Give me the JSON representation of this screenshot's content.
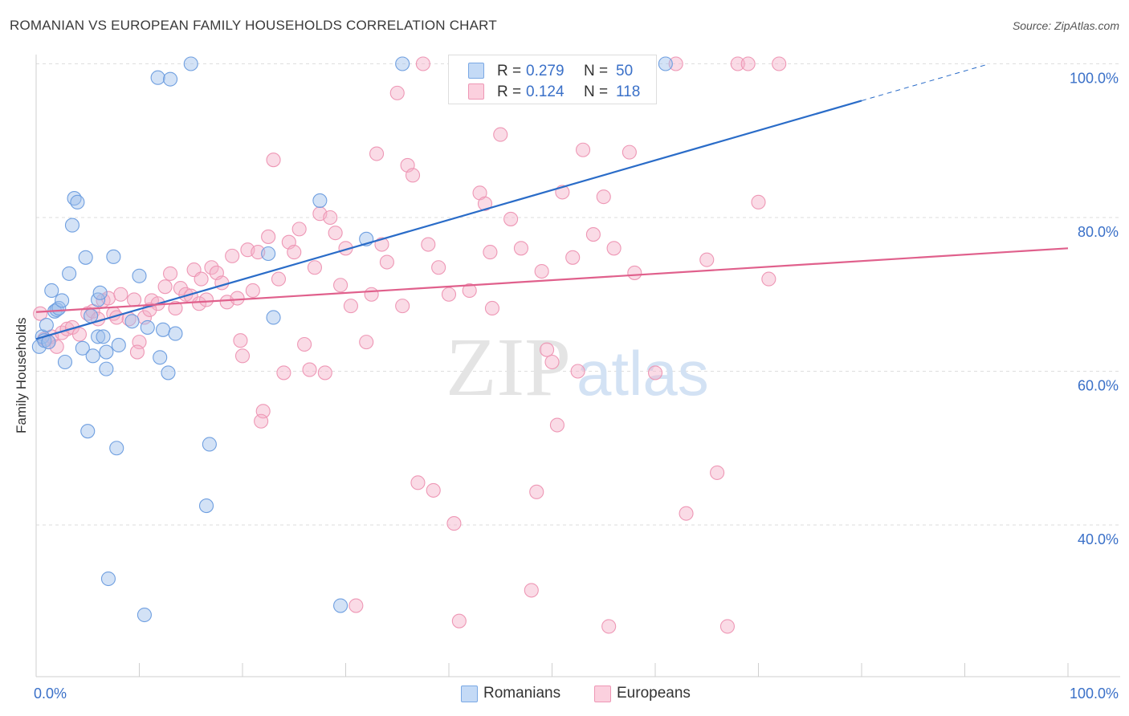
{
  "title": "ROMANIAN VS EUROPEAN FAMILY HOUSEHOLDS CORRELATION CHART",
  "source": "Source: ZipAtlas.com",
  "watermark": {
    "zip": "ZIP",
    "atlas": "atlas"
  },
  "legend": {
    "romanians": {
      "r_label": "R =",
      "r_value": "0.279",
      "n_label": "N =",
      "n_value": "50",
      "color": "#9dbfeb",
      "line": "#2a6cc8"
    },
    "europeans": {
      "r_label": "R =",
      "r_value": "0.124",
      "n_label": "N =",
      "n_value": "118",
      "color": "#f5b0c8",
      "line": "#e0608c"
    }
  },
  "bottom_legend": {
    "romanians": "Romanians",
    "europeans": "Europeans"
  },
  "chart_data": {
    "type": "scatter",
    "title": "ROMANIAN VS EUROPEAN FAMILY HOUSEHOLDS CORRELATION CHART",
    "xlabel": "",
    "ylabel": "Family Households",
    "xlim": [
      0,
      100
    ],
    "ylim": [
      20,
      102
    ],
    "x_tick_labels": [
      "0.0%",
      "100.0%"
    ],
    "y_ticks": [
      40,
      60,
      80,
      100
    ],
    "y_tick_labels": [
      "40.0%",
      "60.0%",
      "80.0%",
      "100.0%"
    ],
    "grid": true,
    "legend_position": "top-center",
    "series": [
      {
        "name": "Romanians",
        "color": "#9dbfeb",
        "trend": {
          "x0": 0,
          "y0": 64.2,
          "x1": 80,
          "y1": 95.2,
          "dashed_to": [
            92,
            100
          ]
        },
        "points": [
          [
            0.3,
            63.2
          ],
          [
            0.6,
            64.5
          ],
          [
            0.8,
            64.0
          ],
          [
            1.0,
            66.0
          ],
          [
            1.2,
            63.8
          ],
          [
            1.5,
            70.5
          ],
          [
            1.8,
            67.8
          ],
          [
            2.0,
            68.0
          ],
          [
            2.2,
            68.2
          ],
          [
            2.5,
            69.2
          ],
          [
            2.8,
            61.2
          ],
          [
            3.2,
            72.7
          ],
          [
            3.5,
            79.0
          ],
          [
            3.7,
            82.5
          ],
          [
            4.0,
            82.0
          ],
          [
            4.5,
            63.0
          ],
          [
            4.8,
            74.8
          ],
          [
            5.0,
            52.2
          ],
          [
            5.3,
            67.2
          ],
          [
            5.5,
            62.0
          ],
          [
            6.0,
            64.5
          ],
          [
            6.0,
            69.3
          ],
          [
            6.2,
            70.2
          ],
          [
            6.5,
            64.5
          ],
          [
            6.8,
            60.3
          ],
          [
            6.8,
            62.5
          ],
          [
            7.0,
            33.0
          ],
          [
            7.5,
            74.9
          ],
          [
            7.8,
            50.0
          ],
          [
            8.0,
            63.4
          ],
          [
            9.3,
            66.5
          ],
          [
            10.0,
            72.4
          ],
          [
            10.5,
            28.3
          ],
          [
            10.8,
            65.7
          ],
          [
            11.8,
            98.2
          ],
          [
            12.0,
            61.8
          ],
          [
            12.3,
            65.4
          ],
          [
            12.8,
            59.8
          ],
          [
            13.0,
            98.0
          ],
          [
            13.5,
            64.9
          ],
          [
            15.0,
            100.0
          ],
          [
            16.5,
            42.5
          ],
          [
            16.8,
            50.5
          ],
          [
            22.5,
            75.3
          ],
          [
            23.0,
            67.0
          ],
          [
            27.5,
            82.2
          ],
          [
            29.5,
            29.5
          ],
          [
            32.0,
            77.2
          ],
          [
            35.5,
            100.0
          ],
          [
            61.0,
            100.0
          ]
        ]
      },
      {
        "name": "Europeans",
        "color": "#f5b0c8",
        "trend": {
          "x0": 0,
          "y0": 67.7,
          "x1": 100,
          "y1": 76.0
        },
        "points": [
          [
            0.4,
            67.5
          ],
          [
            0.8,
            64.2
          ],
          [
            1.2,
            63.8
          ],
          [
            1.5,
            64.5
          ],
          [
            2.0,
            63.2
          ],
          [
            2.5,
            65.0
          ],
          [
            3.0,
            65.5
          ],
          [
            3.5,
            65.7
          ],
          [
            4.2,
            64.8
          ],
          [
            5.0,
            67.5
          ],
          [
            5.5,
            67.8
          ],
          [
            6.0,
            66.8
          ],
          [
            6.5,
            69.2
          ],
          [
            7.0,
            69.5
          ],
          [
            7.5,
            67.5
          ],
          [
            7.8,
            67.0
          ],
          [
            8.2,
            70.0
          ],
          [
            9.0,
            66.8
          ],
          [
            9.5,
            69.3
          ],
          [
            10.0,
            63.8
          ],
          [
            10.5,
            67.0
          ],
          [
            11.2,
            69.2
          ],
          [
            11.8,
            68.8
          ],
          [
            12.5,
            71.0
          ],
          [
            13.0,
            72.7
          ],
          [
            13.5,
            68.2
          ],
          [
            14.0,
            70.8
          ],
          [
            14.5,
            70.0
          ],
          [
            15.0,
            69.8
          ],
          [
            15.3,
            73.2
          ],
          [
            15.8,
            68.8
          ],
          [
            16.0,
            72.0
          ],
          [
            16.5,
            69.3
          ],
          [
            17.0,
            73.5
          ],
          [
            17.5,
            72.8
          ],
          [
            18.0,
            71.5
          ],
          [
            18.5,
            69.0
          ],
          [
            19.0,
            75.0
          ],
          [
            19.5,
            69.5
          ],
          [
            20.0,
            62.0
          ],
          [
            20.5,
            75.8
          ],
          [
            21.0,
            70.5
          ],
          [
            21.5,
            75.5
          ],
          [
            22.0,
            54.8
          ],
          [
            22.5,
            77.5
          ],
          [
            23.0,
            87.5
          ],
          [
            23.5,
            72.0
          ],
          [
            24.0,
            59.8
          ],
          [
            24.5,
            76.8
          ],
          [
            25.0,
            75.5
          ],
          [
            25.5,
            78.5
          ],
          [
            26.0,
            63.5
          ],
          [
            26.5,
            60.2
          ],
          [
            27.0,
            73.5
          ],
          [
            27.5,
            80.5
          ],
          [
            28.0,
            59.8
          ],
          [
            28.5,
            80.0
          ],
          [
            29.0,
            78.0
          ],
          [
            29.5,
            71.2
          ],
          [
            30.0,
            76.0
          ],
          [
            30.5,
            68.5
          ],
          [
            31.0,
            29.5
          ],
          [
            32.0,
            63.8
          ],
          [
            32.5,
            70.0
          ],
          [
            33.0,
            88.3
          ],
          [
            33.5,
            76.5
          ],
          [
            34.0,
            74.2
          ],
          [
            35.0,
            96.2
          ],
          [
            35.5,
            68.5
          ],
          [
            36.0,
            86.8
          ],
          [
            36.5,
            85.5
          ],
          [
            37.0,
            45.5
          ],
          [
            37.5,
            100.0
          ],
          [
            38.0,
            76.5
          ],
          [
            38.5,
            44.5
          ],
          [
            39.0,
            73.5
          ],
          [
            40.0,
            70.0
          ],
          [
            40.5,
            40.2
          ],
          [
            41.0,
            27.5
          ],
          [
            42.0,
            70.5
          ],
          [
            43.0,
            83.2
          ],
          [
            43.5,
            81.8
          ],
          [
            44.0,
            75.5
          ],
          [
            45.0,
            90.8
          ],
          [
            46.0,
            79.8
          ],
          [
            47.0,
            76.0
          ],
          [
            48.0,
            31.5
          ],
          [
            48.5,
            44.3
          ],
          [
            49.0,
            73.0
          ],
          [
            49.5,
            62.8
          ],
          [
            50.0,
            61.2
          ],
          [
            50.5,
            53.0
          ],
          [
            51.0,
            83.3
          ],
          [
            52.0,
            74.8
          ],
          [
            53.0,
            88.8
          ],
          [
            54.0,
            77.8
          ],
          [
            55.0,
            82.7
          ],
          [
            55.5,
            26.8
          ],
          [
            56.0,
            76.0
          ],
          [
            57.5,
            88.5
          ],
          [
            58.0,
            72.8
          ],
          [
            60.0,
            59.8
          ],
          [
            62.0,
            100.0
          ],
          [
            63.0,
            41.5
          ],
          [
            65.0,
            74.5
          ],
          [
            66.0,
            46.8
          ],
          [
            67.0,
            26.8
          ],
          [
            68.0,
            100.0
          ],
          [
            69.0,
            100.0
          ],
          [
            70.0,
            82.0
          ],
          [
            71.0,
            72.0
          ],
          [
            72.0,
            100.0
          ],
          [
            21.8,
            53.5
          ],
          [
            52.5,
            60.0
          ],
          [
            9.8,
            62.5
          ],
          [
            11.0,
            68.0
          ],
          [
            19.8,
            64.0
          ],
          [
            44.2,
            68.2
          ]
        ]
      }
    ]
  }
}
